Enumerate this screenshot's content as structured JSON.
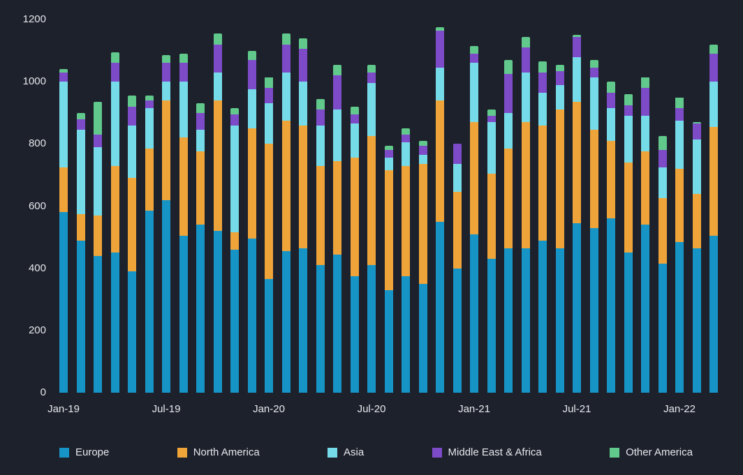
{
  "colors": {
    "background": "#1d212c",
    "text": "#e7e8ec"
  },
  "chart_data": {
    "type": "bar",
    "stacked": true,
    "title": "",
    "xlabel": "",
    "ylabel": "",
    "ylim": [
      0,
      1200
    ],
    "yticks": [
      0,
      200,
      400,
      600,
      800,
      1000,
      1200
    ],
    "grid": false,
    "legend_position": "bottom",
    "x_tick_indices": [
      0,
      6,
      12,
      18,
      24,
      30,
      36
    ],
    "x_tick_labels": [
      "Jan-19",
      "Jul-19",
      "Jan-20",
      "Jul-20",
      "Jan-21",
      "Jul-21",
      "Jan-22"
    ],
    "categories": [
      "Jan-19",
      "Feb-19",
      "Mar-19",
      "Apr-19",
      "May-19",
      "Jun-19",
      "Jul-19",
      "Aug-19",
      "Sep-19",
      "Oct-19",
      "Nov-19",
      "Dec-19",
      "Jan-20",
      "Feb-20",
      "Mar-20",
      "Apr-20",
      "May-20",
      "Jun-20",
      "Jul-20",
      "Aug-20",
      "Sep-20",
      "Oct-20",
      "Nov-20",
      "Dec-20",
      "Jan-21",
      "Feb-21",
      "Mar-21",
      "Apr-21",
      "May-21",
      "Jun-21",
      "Jul-21",
      "Aug-21",
      "Sep-21",
      "Oct-21",
      "Nov-21",
      "Dec-21",
      "Jan-22",
      "Feb-22",
      "Mar-22"
    ],
    "series": [
      {
        "name": "Europe",
        "color": "#1794c6",
        "values": [
          580,
          490,
          440,
          450,
          390,
          585,
          620,
          505,
          540,
          520,
          460,
          495,
          365,
          455,
          465,
          410,
          445,
          375,
          410,
          330,
          375,
          350,
          550,
          400,
          510,
          430,
          465,
          465,
          490,
          465,
          545,
          530,
          560,
          450,
          540,
          415,
          485,
          465,
          505
        ]
      },
      {
        "name": "North America",
        "color": "#efa43a",
        "values": [
          145,
          85,
          130,
          280,
          300,
          200,
          320,
          315,
          235,
          420,
          55,
          355,
          435,
          420,
          395,
          320,
          300,
          380,
          415,
          385,
          355,
          385,
          390,
          245,
          360,
          275,
          320,
          405,
          370,
          445,
          390,
          315,
          250,
          290,
          235,
          210,
          235,
          175,
          350
        ]
      },
      {
        "name": "Asia",
        "color": "#76dbe8",
        "values": [
          275,
          270,
          220,
          270,
          170,
          130,
          60,
          180,
          70,
          90,
          345,
          125,
          130,
          155,
          140,
          130,
          165,
          110,
          170,
          40,
          75,
          30,
          105,
          90,
          190,
          165,
          115,
          160,
          105,
          80,
          145,
          170,
          105,
          150,
          115,
          100,
          155,
          175,
          145
        ]
      },
      {
        "name": "Middle East & Africa",
        "color": "#7e4bc8",
        "values": [
          30,
          35,
          40,
          60,
          60,
          25,
          60,
          60,
          55,
          90,
          35,
          95,
          50,
          90,
          105,
          50,
          110,
          30,
          35,
          25,
          25,
          30,
          120,
          65,
          30,
          20,
          125,
          80,
          65,
          45,
          65,
          30,
          50,
          35,
          90,
          55,
          40,
          50,
          90
        ]
      },
      {
        "name": "Other America",
        "color": "#61c98b",
        "values": [
          10,
          20,
          105,
          35,
          35,
          15,
          25,
          30,
          30,
          35,
          20,
          30,
          35,
          35,
          35,
          35,
          35,
          25,
          25,
          15,
          20,
          15,
          10,
          0,
          25,
          20,
          45,
          35,
          35,
          20,
          5,
          25,
          35,
          35,
          35,
          45,
          35,
          5,
          30
        ]
      }
    ]
  }
}
